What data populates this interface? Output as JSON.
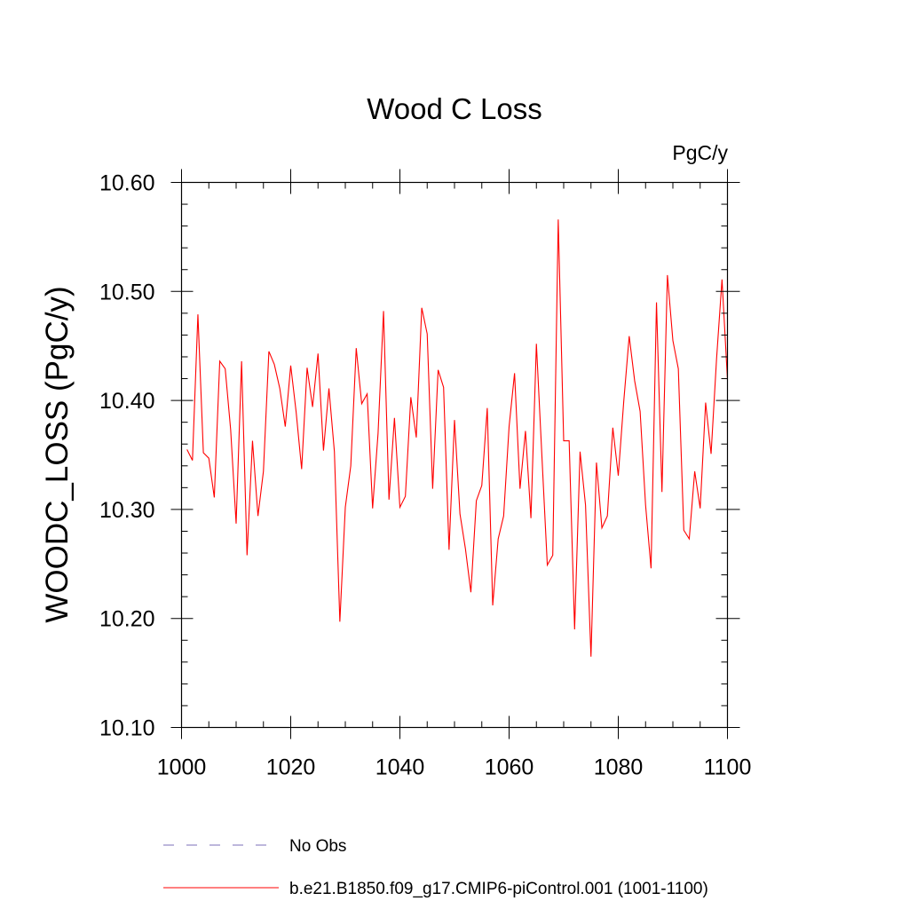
{
  "chart_data": {
    "type": "line",
    "title": "Wood C Loss",
    "units_label": "PgC/y",
    "xlabel": "",
    "ylabel": "WOODC_LOSS  (PgC/y)",
    "xlim": [
      1000,
      1100
    ],
    "ylim": [
      10.1,
      10.6
    ],
    "x_ticks": [
      1000,
      1020,
      1040,
      1060,
      1080,
      1100
    ],
    "x_tick_labels": [
      "1000",
      "1020",
      "1040",
      "1060",
      "1080",
      "1100"
    ],
    "y_ticks": [
      10.1,
      10.2,
      10.3,
      10.4,
      10.5,
      10.6
    ],
    "y_tick_labels": [
      "10.10",
      "10.20",
      "10.30",
      "10.40",
      "10.50",
      "10.60"
    ],
    "grid": false,
    "legend_position": "bottom",
    "series": [
      {
        "name": "No Obs",
        "color": "#7b6fb8",
        "style": "dashed",
        "x": [],
        "y": []
      },
      {
        "name": "b.e21.B1850.f09_g17.CMIP6-piControl.001 (1001-1100)",
        "color": "#ff0000",
        "style": "solid",
        "x": [
          1001,
          1002,
          1003,
          1004,
          1005,
          1006,
          1007,
          1008,
          1009,
          1010,
          1011,
          1012,
          1013,
          1014,
          1015,
          1016,
          1017,
          1018,
          1019,
          1020,
          1021,
          1022,
          1023,
          1024,
          1025,
          1026,
          1027,
          1028,
          1029,
          1030,
          1031,
          1032,
          1033,
          1034,
          1035,
          1036,
          1037,
          1038,
          1039,
          1040,
          1041,
          1042,
          1043,
          1044,
          1045,
          1046,
          1047,
          1048,
          1049,
          1050,
          1051,
          1052,
          1053,
          1054,
          1055,
          1056,
          1057,
          1058,
          1059,
          1060,
          1061,
          1062,
          1063,
          1064,
          1065,
          1066,
          1067,
          1068,
          1069,
          1070,
          1071,
          1072,
          1073,
          1074,
          1075,
          1076,
          1077,
          1078,
          1079,
          1080,
          1081,
          1082,
          1083,
          1084,
          1085,
          1086,
          1087,
          1088,
          1089,
          1090,
          1091,
          1092,
          1093,
          1094,
          1095,
          1096,
          1097,
          1098,
          1099,
          1100
        ],
        "y": [
          10.355,
          10.345,
          10.479,
          10.352,
          10.347,
          10.311,
          10.436,
          10.429,
          10.373,
          10.287,
          10.436,
          10.258,
          10.363,
          10.294,
          10.335,
          10.445,
          10.433,
          10.411,
          10.376,
          10.432,
          10.389,
          10.337,
          10.43,
          10.394,
          10.443,
          10.354,
          10.411,
          10.353,
          10.197,
          10.302,
          10.34,
          10.448,
          10.397,
          10.406,
          10.301,
          10.37,
          10.482,
          10.309,
          10.384,
          10.302,
          10.312,
          10.403,
          10.366,
          10.485,
          10.461,
          10.319,
          10.428,
          10.412,
          10.263,
          10.382,
          10.296,
          10.264,
          10.224,
          10.308,
          10.322,
          10.393,
          10.212,
          10.273,
          10.294,
          10.376,
          10.425,
          10.319,
          10.372,
          10.292,
          10.452,
          10.35,
          10.249,
          10.258,
          10.566,
          10.363,
          10.363,
          10.19,
          10.353,
          10.304,
          10.165,
          10.343,
          10.283,
          10.294,
          10.375,
          10.331,
          10.399,
          10.459,
          10.418,
          10.39,
          10.304,
          10.246,
          10.49,
          10.316,
          10.515,
          10.455,
          10.429,
          10.281,
          10.273,
          10.335,
          10.301,
          10.398,
          10.351,
          10.438,
          10.511,
          10.419
        ]
      }
    ]
  }
}
